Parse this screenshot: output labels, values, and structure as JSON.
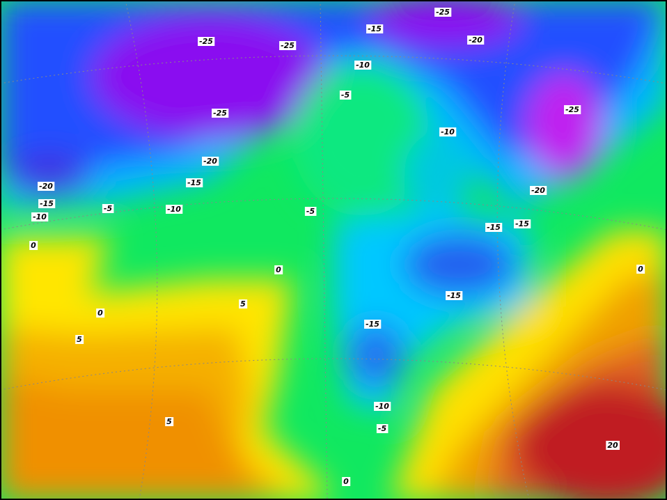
{
  "contour_labels": [
    -25,
    -15,
    -20,
    -25,
    -25,
    -10,
    -5,
    -25,
    -25,
    -10,
    -20,
    -15,
    -20,
    -20,
    -15,
    -5,
    -10,
    -10,
    -5,
    -15,
    -15,
    0,
    0,
    0,
    -15,
    5,
    0,
    -15,
    5,
    -10,
    5,
    -5,
    20,
    0
  ]
}
